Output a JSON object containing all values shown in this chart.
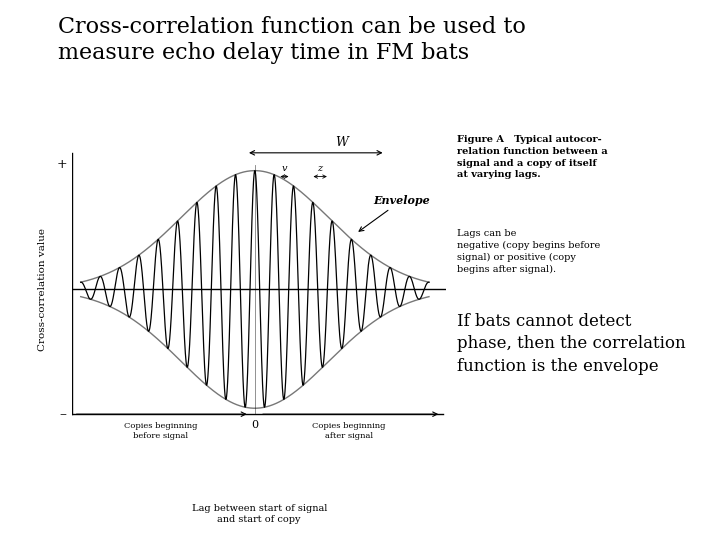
{
  "title_line1": "Cross-correlation function can be used to",
  "title_line2": "measure echo delay time in FM bats",
  "title_fontsize": 16,
  "ylabel": "Cross-correlation value",
  "figure_caption_bold": "Figure A   Typical autocor-\nrelation function between a\nsignal and a copy of itself\nat varying lags.",
  "figure_caption_normal": " Lags can be\nnegative (copy begins before\nsignal) or positive (copy\nbegins after signal).",
  "bottom_text": "If bats cannot detect\nphase, then the correlation\nfunction is the envelope",
  "xlabel_main": "Lag between start of signal\nand start of copy",
  "label_copies_before": "Copies beginning\nbefore signal",
  "label_copies_after": "Copies beginning\nafter signal",
  "envelope_label": "Envelope",
  "label_W": "W",
  "label_v": "v",
  "label_z": "z",
  "label_plus": "+",
  "label_minus": "–",
  "bg_color": "#ffffff",
  "line_color": "#000000",
  "envelope_color": "#777777",
  "text_color": "#000000",
  "freq": 9,
  "sigma": 2.8
}
